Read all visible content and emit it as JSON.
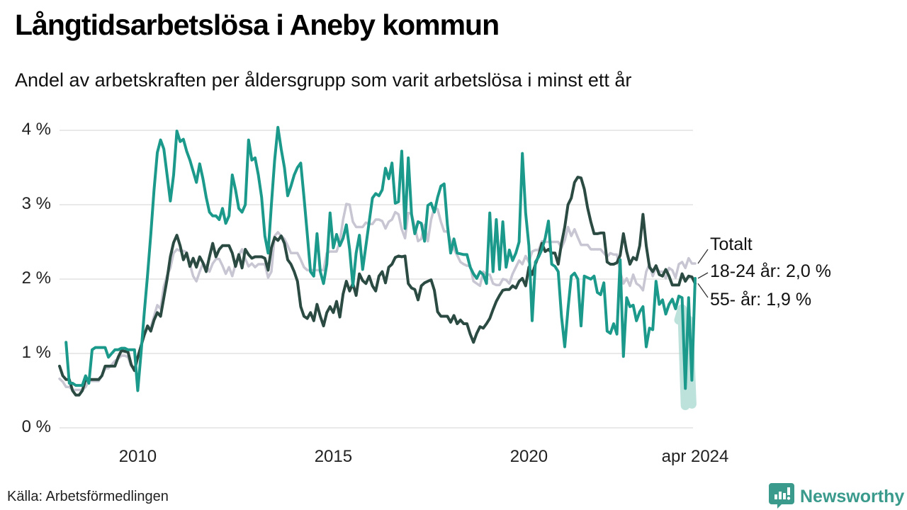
{
  "header": {
    "title": "Långtidsarbetslösa i Aneby kommun",
    "subtitle": "Andel av arbetskraften per åldersgrupp som varit arbetslösa i minst ett år"
  },
  "footer": {
    "source": "Källa: Arbetsförmedlingen",
    "brand": "Newsworthy"
  },
  "colors": {
    "teal": "#1b998b",
    "dark_green": "#2a4a42",
    "gray": "#c7c6d2",
    "band": "#a7d7cf",
    "gridline": "#e2e2e2",
    "leader": "#333333",
    "brand_teal": "#3a9a8c"
  },
  "legend": {
    "items": [
      {
        "label": "Totalt",
        "series": "Totalt"
      },
      {
        "label": "18-24 år: 2,0 %",
        "series": "18-24 år"
      },
      {
        "label": "55- år: 1,9 %",
        "series": "55- år"
      }
    ]
  },
  "chart_data": {
    "type": "line",
    "unit": "%",
    "frequency": "monthly",
    "x_start": "2008-01",
    "x_end": "2024-04",
    "ylim": [
      0,
      4
    ],
    "grid": true,
    "y_ticks": [
      {
        "label": "0 %",
        "value": 0
      },
      {
        "label": "1 %",
        "value": 1
      },
      {
        "label": "2 %",
        "value": 2
      },
      {
        "label": "3 %",
        "value": 3
      },
      {
        "label": "4 %",
        "value": 4
      }
    ],
    "x_ticks": [
      {
        "label": "2010",
        "month_index": 24
      },
      {
        "label": "2015",
        "month_index": 84
      },
      {
        "label": "2020",
        "month_index": 144
      },
      {
        "label": "apr 2024",
        "month_index": 195
      }
    ],
    "series": [
      {
        "name": "Totalt",
        "color_key": "gray",
        "last_value": 2.2,
        "values": [
          0.66,
          0.62,
          0.55,
          0.55,
          0.51,
          0.51,
          0.51,
          0.51,
          0.55,
          0.63,
          0.63,
          0.63,
          0.63,
          0.7,
          0.8,
          0.8,
          0.85,
          0.9,
          0.93,
          0.97,
          0.97,
          0.95,
          0.83,
          0.8,
          0.95,
          1.1,
          1.25,
          1.35,
          1.35,
          1.5,
          1.65,
          1.6,
          1.9,
          2.05,
          2.15,
          2.35,
          2.4,
          2.38,
          2.38,
          2.36,
          2.2,
          2.04,
          1.97,
          2.1,
          2.21,
          2.18,
          2.1,
          2.21,
          2.27,
          2.27,
          2.18,
          2.07,
          2.16,
          2.04,
          2.2,
          2.32,
          2.4,
          2.27,
          2.17,
          2.21,
          2.16,
          2.2,
          2.2,
          2.2,
          2.02,
          2.1,
          2.58,
          2.63,
          2.58,
          2.54,
          2.45,
          2.35,
          2.35,
          2.35,
          2.26,
          2.16,
          2.12,
          2.12,
          2.12,
          2.12,
          2.12,
          2.12,
          2.35,
          2.37,
          2.37,
          2.37,
          2.5,
          2.8,
          3.01,
          3.0,
          2.77,
          2.7,
          2.7,
          2.7,
          2.76,
          2.74,
          2.74,
          2.8,
          2.8,
          2.78,
          2.68,
          2.77,
          2.8,
          2.9,
          2.87,
          2.67,
          2.55,
          2.89,
          2.88,
          2.7,
          2.51,
          2.54,
          2.73,
          2.51,
          2.8,
          2.96,
          2.94,
          2.77,
          2.64,
          2.64,
          2.51,
          2.4,
          2.32,
          2.23,
          2.2,
          2.18,
          2.18,
          1.97,
          1.94,
          1.91,
          2.1,
          2.06,
          2.06,
          1.94,
          1.92,
          1.92,
          2.0,
          1.99,
          1.94,
          2.07,
          2.16,
          2.25,
          2.2,
          2.31,
          2.23,
          2.37,
          2.39,
          2.39,
          2.51,
          2.5,
          2.5,
          2.5,
          2.5,
          2.5,
          2.42,
          2.52,
          2.7,
          2.58,
          2.67,
          2.56,
          2.46,
          2.46,
          2.46,
          2.4,
          2.4,
          2.4,
          2.4,
          2.35,
          2.3,
          2.35,
          2.33,
          2.33,
          2.1,
          1.94,
          2.01,
          1.91,
          2.06,
          1.94,
          1.91,
          1.85,
          2.1,
          2.2,
          2.04,
          2.16,
          2.1,
          2.1,
          2.01,
          2.15,
          2.12,
          2.02,
          2.2,
          2.23,
          2.15,
          2.28,
          2.21,
          2.21
        ]
      },
      {
        "name": "55- år",
        "color_key": "dark_green",
        "last_value": 1.9,
        "values": [
          0.83,
          0.7,
          0.65,
          0.65,
          0.5,
          0.44,
          0.44,
          0.5,
          0.65,
          0.65,
          0.65,
          0.65,
          0.65,
          0.7,
          0.83,
          0.83,
          0.83,
          0.83,
          0.95,
          1.04,
          1.03,
          1.02,
          0.85,
          0.77,
          0.95,
          1.1,
          1.25,
          1.37,
          1.3,
          1.45,
          1.55,
          1.5,
          1.75,
          2.0,
          2.3,
          2.49,
          2.59,
          2.45,
          2.26,
          2.35,
          2.17,
          2.28,
          2.16,
          2.3,
          2.22,
          2.1,
          2.3,
          2.48,
          2.3,
          2.4,
          2.45,
          2.45,
          2.45,
          2.35,
          2.17,
          2.33,
          2.15,
          2.4,
          2.33,
          2.28,
          2.3,
          2.3,
          2.3,
          2.28,
          2.12,
          2.42,
          2.56,
          2.52,
          2.58,
          2.48,
          2.26,
          2.2,
          2.1,
          1.97,
          1.63,
          1.5,
          1.47,
          1.55,
          1.44,
          1.66,
          1.5,
          1.37,
          1.55,
          1.63,
          1.55,
          1.7,
          1.49,
          1.8,
          1.97,
          1.84,
          1.94,
          1.78,
          2.07,
          1.98,
          1.94,
          2.04,
          1.91,
          1.84,
          2.04,
          2.1,
          1.95,
          2.16,
          2.2,
          2.29,
          2.31,
          2.3,
          2.31,
          1.94,
          1.88,
          1.86,
          1.72,
          1.91,
          1.95,
          1.97,
          1.99,
          1.85,
          1.56,
          1.5,
          1.5,
          1.5,
          1.42,
          1.51,
          1.4,
          1.45,
          1.4,
          1.4,
          1.26,
          1.15,
          1.27,
          1.36,
          1.34,
          1.4,
          1.47,
          1.59,
          1.7,
          1.78,
          1.85,
          1.86,
          1.86,
          1.91,
          1.88,
          1.97,
          2.01,
          1.91,
          2.16,
          2.06,
          2.2,
          2.32,
          2.48,
          2.37,
          2.4,
          2.35,
          2.35,
          2.2,
          2.48,
          2.7,
          3.0,
          3.09,
          3.3,
          3.37,
          3.36,
          3.21,
          2.96,
          2.77,
          2.61,
          2.61,
          2.62,
          2.62,
          2.23,
          2.2,
          2.2,
          2.22,
          2.32,
          2.61,
          2.37,
          2.2,
          2.29,
          2.26,
          2.45,
          2.87,
          2.45,
          2.16,
          2.1,
          2.18,
          2.06,
          2.04,
          2.13,
          2.04,
          1.92,
          1.92,
          1.92,
          2.07,
          1.97,
          2.04,
          2.03,
          1.94
        ]
      },
      {
        "name": "18-24 år",
        "color_key": "teal",
        "last_value": 2.0,
        "values": [
          null,
          null,
          1.15,
          0.6,
          0.6,
          0.57,
          0.57,
          0.57,
          0.7,
          0.6,
          1.05,
          1.08,
          1.08,
          1.08,
          1.08,
          0.95,
          1.0,
          1.05,
          1.05,
          1.07,
          1.07,
          1.05,
          1.05,
          1.05,
          0.5,
          1.0,
          1.55,
          2.05,
          2.6,
          3.2,
          3.7,
          3.87,
          3.75,
          3.4,
          3.05,
          3.4,
          3.99,
          3.85,
          3.88,
          3.72,
          3.6,
          3.45,
          3.3,
          3.55,
          3.35,
          3.1,
          2.9,
          2.85,
          2.85,
          2.8,
          2.95,
          2.75,
          2.85,
          3.4,
          3.2,
          2.95,
          2.9,
          3.0,
          3.87,
          3.6,
          3.63,
          3.4,
          3.1,
          2.58,
          2.35,
          3.0,
          3.6,
          4.04,
          3.75,
          3.5,
          3.12,
          3.25,
          3.4,
          3.5,
          3.56,
          3.1,
          2.61,
          2.1,
          2.04,
          2.61,
          2.1,
          1.94,
          2.2,
          2.89,
          2.42,
          2.6,
          2.45,
          2.55,
          2.73,
          2.4,
          1.91,
          2.35,
          2.59,
          2.13,
          2.45,
          2.77,
          3.09,
          3.15,
          3.12,
          3.2,
          3.49,
          3.35,
          3.56,
          3.02,
          3.04,
          3.72,
          2.68,
          3.63,
          2.87,
          2.61,
          2.77,
          2.75,
          2.51,
          2.99,
          3.02,
          2.9,
          3.1,
          3.25,
          3.28,
          2.73,
          2.35,
          2.54,
          2.35,
          2.34,
          2.33,
          2.33,
          2.16,
          2.07,
          2.01,
          2.1,
          2.06,
          1.94,
          2.89,
          2.1,
          2.8,
          2.13,
          2.77,
          2.16,
          2.39,
          2.25,
          2.35,
          2.5,
          3.69,
          2.89,
          2.45,
          1.44,
          2.23,
          2.3,
          2.4,
          2.55,
          2.78,
          2.2,
          2.17,
          2.1,
          1.5,
          1.09,
          1.6,
          2.04,
          2.08,
          2.0,
          1.37,
          2.04,
          2.02,
          2.0,
          2.04,
          1.82,
          1.79,
          1.95,
          1.3,
          1.27,
          1.4,
          1.26,
          2.26,
          0.96,
          1.75,
          1.63,
          1.65,
          1.44,
          1.56,
          1.63,
          1.09,
          1.34,
          1.32,
          1.97,
          1.66,
          1.72,
          1.53,
          1.66,
          1.73,
          1.6,
          1.77,
          1.75,
          0.53,
          1.75,
          0.64,
          2.01
        ]
      }
    ],
    "uncertainty_band": {
      "series": "18-24 år",
      "month_indices": [
        190,
        191,
        192,
        193,
        194
      ],
      "values": [
        1.45,
        1.6,
        0.3,
        1.45,
        0.32
      ]
    }
  }
}
